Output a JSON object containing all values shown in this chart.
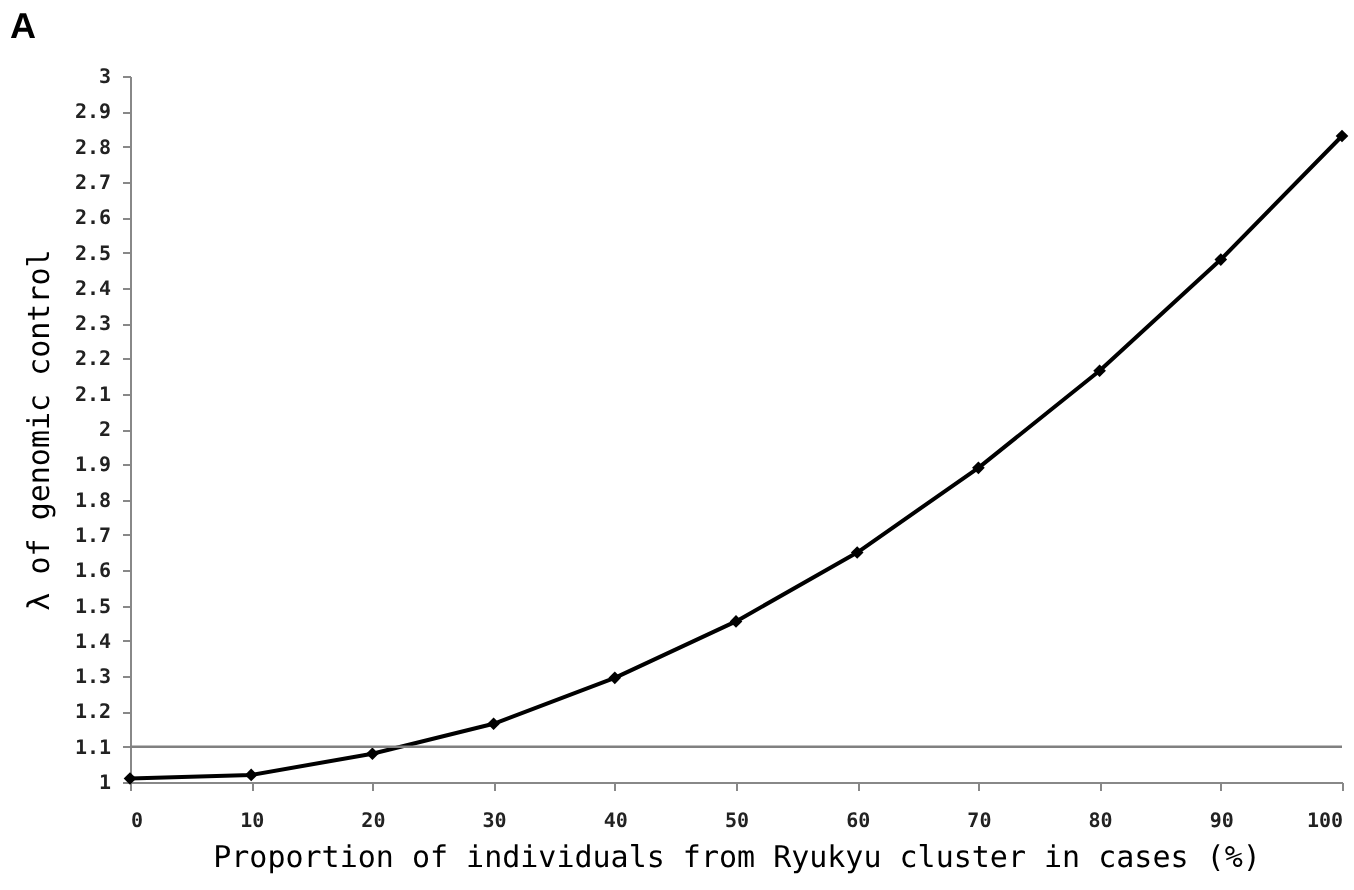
{
  "chart_data": {
    "type": "line",
    "title": "A",
    "xlabel": "Proportion of individuals from Ryukyu cluster in cases (%)",
    "ylabel": "λ of genomic control",
    "x": [
      0,
      10,
      20,
      30,
      40,
      50,
      60,
      70,
      80,
      90,
      100
    ],
    "series": [
      {
        "color": "#000000",
        "values": [
          1.01,
          1.02,
          1.08,
          1.165,
          1.295,
          1.455,
          1.65,
          1.89,
          2.165,
          2.48,
          2.83
        ]
      }
    ],
    "xlim": [
      0,
      100
    ],
    "xticks": [
      0,
      10,
      20,
      30,
      40,
      50,
      60,
      70,
      80,
      90,
      100
    ],
    "ylim": [
      1,
      3
    ],
    "yticks": [
      1,
      1.1,
      1.2,
      1.3,
      1.4,
      1.5,
      1.6,
      1.7,
      1.8,
      1.9,
      2,
      2.1,
      2.2,
      2.3,
      2.4,
      2.5,
      2.6,
      2.7,
      2.8,
      2.9,
      3
    ],
    "ref_lines": [
      {
        "axis": "y",
        "value": 1.1,
        "color": "#808080"
      }
    ],
    "grid": false,
    "marker": "diamond",
    "line_style": "solid"
  }
}
